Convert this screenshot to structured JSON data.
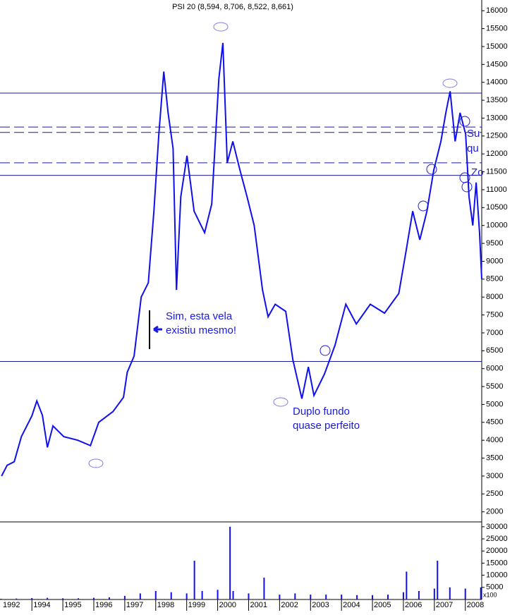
{
  "chart_data": {
    "type": "line",
    "title": "PSI 20 (8,594, 8,706, 8,522, 8,661)",
    "first_x_label": "1992",
    "xlim": [
      1992.97,
      2008.53
    ],
    "xticks": [
      1994,
      1995,
      1996,
      1997,
      1998,
      1999,
      2000,
      2001,
      2002,
      2003,
      2004,
      2005,
      2006,
      2007,
      2008
    ],
    "ylim": [
      1600,
      16300
    ],
    "yticks": [
      2000,
      2500,
      3000,
      3500,
      4000,
      4500,
      5000,
      5500,
      6000,
      6500,
      7000,
      7500,
      8000,
      8500,
      9000,
      9500,
      10000,
      10500,
      11000,
      11500,
      12000,
      12500,
      13000,
      13500,
      14000,
      14500,
      15000,
      15500,
      16000
    ],
    "series": [
      {
        "name": "PSI 20",
        "color": "#1010ee",
        "x": [
          1993.02,
          1993.2,
          1993.43,
          1993.66,
          1994.0,
          1994.16,
          1994.34,
          1994.5,
          1994.68,
          1995.03,
          1995.48,
          1995.89,
          1996.16,
          1996.62,
          1996.96,
          1997.08,
          1997.3,
          1997.53,
          1997.76,
          1997.94,
          1998.1,
          1998.26,
          1998.4,
          1998.56,
          1998.67,
          1998.81,
          1999.01,
          1999.24,
          1999.58,
          1999.81,
          2000.04,
          2000.17,
          2000.31,
          2000.49,
          2000.72,
          2000.95,
          2001.18,
          2001.45,
          2001.63,
          2001.86,
          2002.2,
          2002.43,
          2002.72,
          2002.93,
          2003.11,
          2003.45,
          2003.79,
          2004.14,
          2004.48,
          2004.93,
          2005.39,
          2005.85,
          2006.07,
          2006.3,
          2006.53,
          2006.76,
          2006.98,
          2007.21,
          2007.37,
          2007.51,
          2007.67,
          2007.83,
          2008.01,
          2008.12,
          2008.24,
          2008.35,
          2008.46,
          2008.53
        ],
        "values": [
          3000,
          3300,
          3400,
          4100,
          4680,
          5100,
          4700,
          3800,
          4400,
          4100,
          4000,
          3850,
          4500,
          4800,
          5200,
          5900,
          6350,
          8000,
          8400,
          10400,
          12550,
          14300,
          13150,
          12150,
          8200,
          10800,
          11950,
          10400,
          9800,
          10600,
          14100,
          15100,
          11750,
          12350,
          11550,
          10800,
          10000,
          8200,
          7450,
          7800,
          7600,
          6250,
          5160,
          6050,
          5250,
          5850,
          6650,
          7800,
          7250,
          7800,
          7550,
          8100,
          9200,
          10400,
          9600,
          10400,
          11550,
          12350,
          13150,
          13750,
          12350,
          13150,
          12550,
          10800,
          10000,
          11200,
          9800,
          8500
        ]
      }
    ],
    "hlines": [
      {
        "value": 13700,
        "style": "solid"
      },
      {
        "value": 12750,
        "style": "dashed"
      },
      {
        "value": 12600,
        "style": "dashed"
      },
      {
        "value": 11750,
        "style": "dashed"
      },
      {
        "value": 11400,
        "style": "solid"
      },
      {
        "value": 6200,
        "style": "solid"
      }
    ],
    "volume": {
      "unit_label": "x100",
      "color": "#1010ee",
      "ylim": [
        0,
        32000
      ],
      "yticks": [
        5000,
        10000,
        15000,
        20000,
        25000,
        30000
      ],
      "x": [
        1993.0,
        1993.5,
        1994.0,
        1994.5,
        1995.0,
        1995.5,
        1996.0,
        1996.5,
        1997.0,
        1997.5,
        1998.0,
        1998.5,
        1999.0,
        1999.25,
        1999.5,
        2000.0,
        2000.4,
        2000.5,
        2001.0,
        2001.5,
        2002.0,
        2002.5,
        2003.0,
        2003.5,
        2004.0,
        2004.5,
        2005.0,
        2005.5,
        2006.0,
        2006.1,
        2006.5,
        2007.0,
        2007.1,
        2007.5,
        2008.0,
        2008.5
      ],
      "values": [
        300,
        400,
        600,
        700,
        500,
        500,
        700,
        900,
        1500,
        2500,
        3500,
        3000,
        2500,
        16000,
        3500,
        4000,
        30000,
        3500,
        2500,
        9000,
        2000,
        2500,
        2000,
        2000,
        2000,
        1800,
        1800,
        2000,
        3000,
        11500,
        3500,
        4500,
        16000,
        5000,
        4500,
        5000
      ]
    },
    "annotations": [
      {
        "lines": [
          "Sim, esta vela",
          "existiu mesmo!"
        ]
      },
      {
        "lines": [
          "Duplo fundo",
          "quase perfeito"
        ]
      },
      {
        "lines": [
          "Su",
          "qu"
        ]
      },
      {
        "lines": [
          "Zo"
        ]
      }
    ]
  }
}
